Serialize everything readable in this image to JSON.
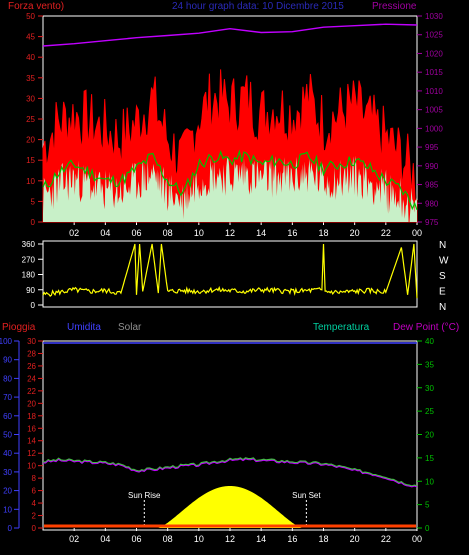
{
  "header": {
    "left_label": "Forza vento)",
    "title": "24 hour graph data: 10 Dicembre 2015",
    "right_label": "Pressione"
  },
  "colors": {
    "title": "#2a2ab8",
    "wind_axis": "#e02020",
    "pressure_axis": "#a000a0",
    "gust": "#ff0000",
    "avg_wind": "#00c000",
    "wind_fill": "#c8f0c8",
    "pressure_line": "#c000ff",
    "direction": "#ffff00",
    "rain_axis": "#e02020",
    "humidity_axis": "#4040ff",
    "solar_label": "#909090",
    "temp_axis": "#00c000",
    "temp_label": "#00d0a0",
    "dew_label": "#c000c0",
    "dew_point_line": "#c000ff",
    "sun": "#ffff00"
  },
  "chart_data": [
    {
      "type": "line",
      "name": "wind-pressure",
      "x_ticks": [
        "02",
        "04",
        "06",
        "08",
        "10",
        "12",
        "14",
        "16",
        "18",
        "20",
        "22",
        "00"
      ],
      "wind_axis": {
        "ylim": [
          0,
          50
        ],
        "ticks": [
          "0",
          "5",
          "10",
          "15",
          "20",
          "25",
          "30",
          "35",
          "40",
          "45",
          "50"
        ]
      },
      "pressure_axis": {
        "ylim": [
          975,
          1030
        ],
        "ticks": [
          "975",
          "980",
          "985",
          "990",
          "995",
          "1000",
          "1005",
          "1010",
          "1015",
          "1020",
          "1025",
          "1030"
        ]
      },
      "x_hours": [
        0,
        1,
        2,
        3,
        4,
        5,
        6,
        7,
        8,
        9,
        10,
        11,
        12,
        13,
        14,
        15,
        16,
        17,
        18,
        19,
        20,
        21,
        22,
        23,
        24
      ],
      "gust": [
        18,
        24,
        26,
        24,
        22,
        20,
        24,
        30,
        20,
        14,
        26,
        30,
        28,
        30,
        26,
        28,
        26,
        30,
        24,
        26,
        28,
        24,
        20,
        16,
        10
      ],
      "avg_wind": [
        8,
        12,
        14,
        12,
        10,
        10,
        13,
        16,
        10,
        7,
        14,
        16,
        15,
        16,
        14,
        15,
        14,
        16,
        13,
        14,
        15,
        13,
        10,
        8,
        3
      ],
      "pressure_hours": [
        0,
        2,
        4,
        6,
        8,
        10,
        12,
        14,
        16,
        18,
        20,
        22,
        24
      ],
      "pressure": [
        1022.0,
        1022.6,
        1023.4,
        1024.2,
        1024.8,
        1025.4,
        1026.6,
        1025.6,
        1025.8,
        1027.0,
        1027.4,
        1027.8,
        1027.6
      ]
    },
    {
      "type": "line",
      "name": "wind-direction",
      "y_ticks": [
        "0",
        "90",
        "180",
        "270",
        "360"
      ],
      "direction_labels": [
        "N",
        "W",
        "S",
        "E",
        "N"
      ],
      "ylim": [
        0,
        360
      ],
      "x_hours": [
        0,
        1,
        2,
        3,
        4,
        5,
        5.9,
        6.0,
        6.2,
        6.4,
        7,
        7.4,
        7.6,
        8,
        9,
        10,
        11,
        12,
        13,
        14,
        15,
        16,
        17,
        17.9,
        18.0,
        18.1,
        19,
        20,
        21,
        22,
        23.0,
        23.4,
        23.8,
        24
      ],
      "degrees": [
        60,
        75,
        90,
        80,
        85,
        70,
        360,
        60,
        360,
        80,
        360,
        70,
        360,
        80,
        85,
        80,
        90,
        85,
        80,
        90,
        85,
        80,
        85,
        90,
        360,
        80,
        75,
        80,
        85,
        75,
        340,
        60,
        360,
        40
      ]
    },
    {
      "type": "line",
      "name": "rain-humidity-temperature",
      "x_ticks": [
        "02",
        "04",
        "06",
        "08",
        "10",
        "12",
        "14",
        "16",
        "18",
        "20",
        "22",
        "00"
      ],
      "rain_axis": {
        "ylim": [
          0,
          30
        ],
        "ticks": [
          "0",
          "2",
          "4",
          "6",
          "8",
          "10",
          "12",
          "14",
          "16",
          "18",
          "20",
          "22",
          "24",
          "26",
          "28",
          "30"
        ]
      },
      "humidity_axis": {
        "ylim": [
          0,
          100
        ],
        "ticks": [
          "0",
          "10",
          "20",
          "30",
          "40",
          "50",
          "60",
          "70",
          "80",
          "90",
          "100"
        ]
      },
      "temperature_axis": {
        "ylim": [
          0,
          40
        ],
        "ticks": [
          "0",
          "5",
          "10",
          "15",
          "20",
          "25",
          "30",
          "35",
          "40"
        ]
      },
      "humidity": [
        100,
        100,
        100,
        100,
        100,
        100,
        100,
        100,
        100,
        100,
        100,
        100,
        100
      ],
      "humidity_hours": [
        0,
        2,
        4,
        6,
        8,
        10,
        12,
        14,
        16,
        18,
        20,
        22,
        24
      ],
      "temp_hours": [
        0,
        1,
        2,
        3,
        4,
        5,
        6,
        7,
        8,
        9,
        10,
        11,
        12,
        13,
        14,
        15,
        16,
        17,
        18,
        19,
        20,
        21,
        22,
        23,
        24
      ],
      "temperature": [
        14.2,
        14.6,
        14.4,
        14.2,
        14.0,
        13.6,
        12.4,
        12.6,
        13.0,
        13.4,
        13.6,
        14.2,
        14.6,
        14.8,
        14.6,
        14.4,
        14.2,
        14.0,
        13.8,
        13.2,
        12.4,
        11.8,
        11.0,
        9.8,
        9.0
      ],
      "dew_point": [
        14.0,
        14.4,
        14.2,
        14.0,
        13.8,
        13.4,
        12.2,
        12.4,
        12.8,
        13.2,
        13.4,
        14.0,
        14.4,
        14.6,
        14.4,
        14.2,
        14.0,
        13.8,
        13.6,
        13.0,
        12.2,
        11.6,
        10.8,
        9.6,
        8.8
      ],
      "solar_peak_time": 12.3,
      "sun_rise": "Sun Rise",
      "sun_set": "Sun Set",
      "sun_rise_time": "Sun Rise",
      "sun_rise_hour": 7.4,
      "sun_set_hour": 16.6,
      "labels": {
        "rain": "Pioggia",
        "humidity": "Umidita",
        "solar": "Solar",
        "temperature": "Temperatura",
        "dew_point": "Dew Point (°C)"
      }
    }
  ]
}
